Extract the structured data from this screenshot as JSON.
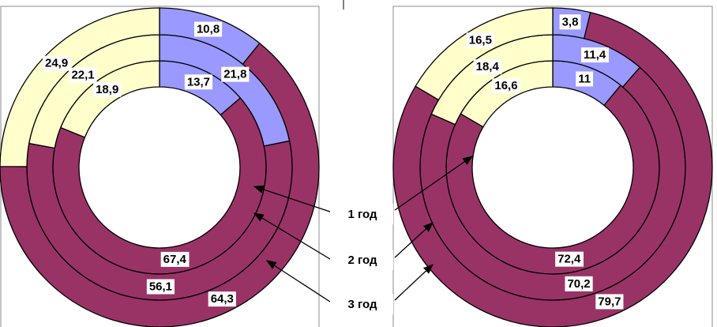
{
  "chart_data": [
    {
      "type": "donut",
      "colors": [
        "#9999ff",
        "#993366",
        "#ffffcc"
      ],
      "series": [
        {
          "name": "1 год",
          "values": [
            13.7,
            67.4,
            18.9
          ],
          "value_labels": [
            "13,7",
            "67,4",
            "18,9"
          ]
        },
        {
          "name": "2 год",
          "values": [
            21.8,
            56.1,
            22.1
          ],
          "value_labels": [
            "21,8",
            "56,1",
            "22,1"
          ]
        },
        {
          "name": "3 год",
          "values": [
            10.8,
            64.3,
            24.9
          ],
          "value_labels": [
            "10,8",
            "64,3",
            "24,9"
          ]
        }
      ]
    },
    {
      "type": "donut",
      "colors": [
        "#9999ff",
        "#993366",
        "#ffffcc"
      ],
      "series": [
        {
          "values": [
            11,
            72.4,
            16.6
          ],
          "value_labels": [
            "11",
            "72,4",
            "16,6"
          ]
        },
        {
          "values": [
            11.4,
            70.2,
            18.4
          ],
          "value_labels": [
            "11,4",
            "70,2",
            "18,4"
          ]
        },
        {
          "values": [
            3.8,
            79.7,
            16.5
          ],
          "value_labels": [
            "3,8",
            "79,7",
            "16,5"
          ]
        }
      ]
    }
  ]
}
